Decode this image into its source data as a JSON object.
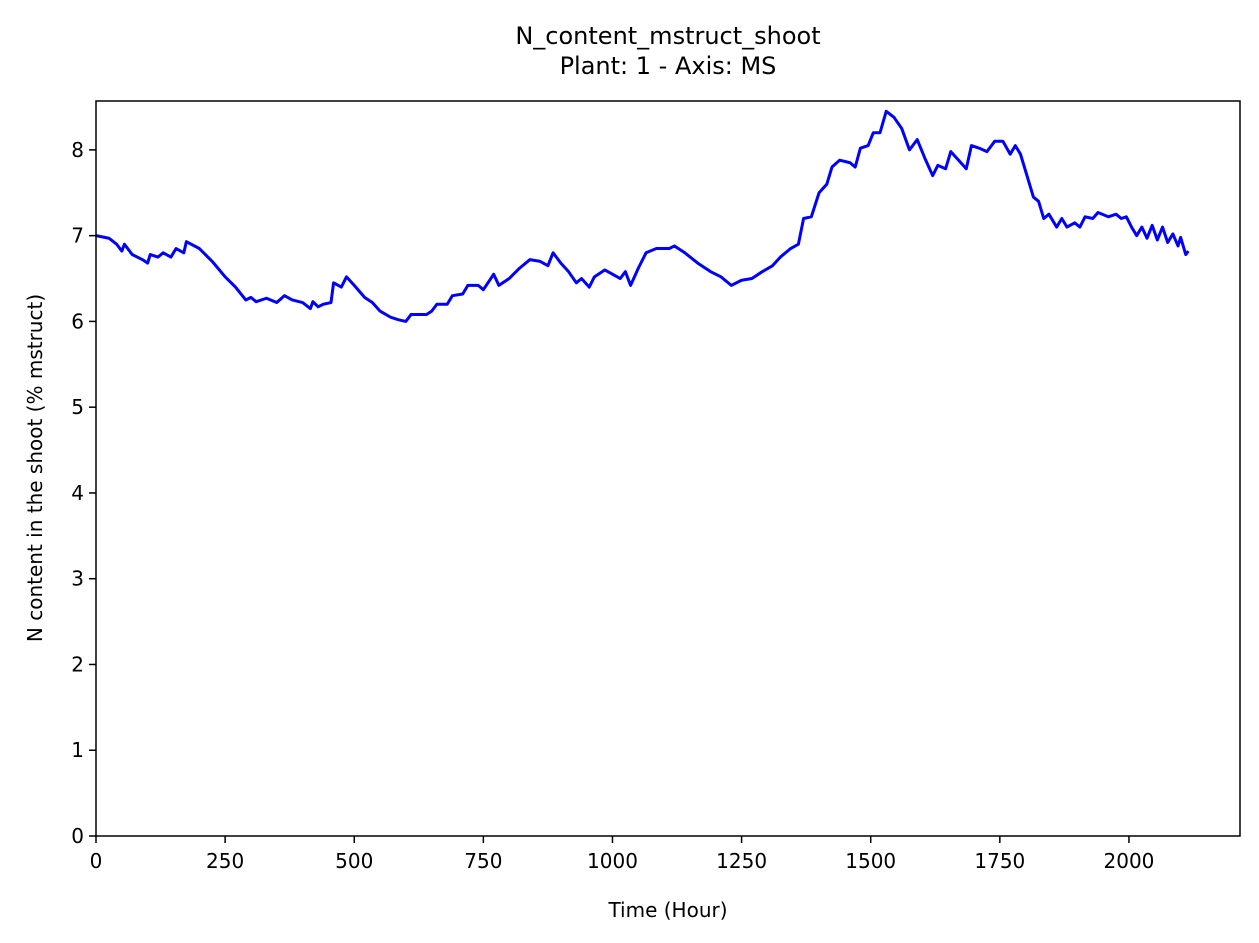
{
  "chart_data": {
    "type": "line",
    "title": "N_content_mstruct_shoot",
    "subtitle": "Plant: 1 - Axis: MS",
    "x_label": "Time (Hour)",
    "y_label": "N content in the shoot (% mstruct)",
    "xlim": [
      0,
      2215
    ],
    "ylim": [
      0,
      8.57
    ],
    "xticks": [
      0,
      250,
      500,
      750,
      1000,
      1250,
      1500,
      1750,
      2000
    ],
    "yticks": [
      0,
      1,
      2,
      3,
      4,
      5,
      6,
      7,
      8
    ],
    "series": [
      {
        "color": "#0000ff",
        "x": [
          0,
          25,
          40,
          50,
          55,
          70,
          90,
          100,
          105,
          120,
          130,
          145,
          155,
          170,
          175,
          200,
          225,
          250,
          270,
          290,
          300,
          310,
          330,
          350,
          365,
          380,
          400,
          415,
          420,
          430,
          440,
          455,
          460,
          475,
          485,
          500,
          520,
          535,
          550,
          570,
          585,
          600,
          610,
          640,
          650,
          660,
          680,
          690,
          710,
          720,
          740,
          750,
          770,
          780,
          800,
          820,
          840,
          860,
          875,
          885,
          900,
          915,
          930,
          940,
          955,
          965,
          985,
          1000,
          1015,
          1025,
          1035,
          1050,
          1065,
          1085,
          1110,
          1120,
          1140,
          1165,
          1190,
          1210,
          1230,
          1250,
          1270,
          1290,
          1310,
          1325,
          1345,
          1360,
          1370,
          1385,
          1400,
          1415,
          1425,
          1440,
          1460,
          1470,
          1480,
          1495,
          1505,
          1518,
          1530,
          1545,
          1560,
          1575,
          1590,
          1605,
          1620,
          1630,
          1645,
          1655,
          1670,
          1685,
          1695,
          1710,
          1725,
          1740,
          1756,
          1770,
          1780,
          1790,
          1800,
          1815,
          1825,
          1835,
          1845,
          1860,
          1870,
          1880,
          1895,
          1905,
          1915,
          1930,
          1940,
          1960,
          1975,
          1985,
          1995,
          2005,
          2015,
          2025,
          2035,
          2045,
          2055,
          2065,
          2075,
          2085,
          2095,
          2100,
          2110,
          2115
        ],
        "values": [
          7.0,
          6.97,
          6.9,
          6.82,
          6.9,
          6.78,
          6.72,
          6.68,
          6.78,
          6.75,
          6.8,
          6.75,
          6.85,
          6.8,
          6.93,
          6.85,
          6.7,
          6.52,
          6.4,
          6.25,
          6.28,
          6.23,
          6.27,
          6.22,
          6.3,
          6.25,
          6.22,
          6.15,
          6.23,
          6.17,
          6.2,
          6.22,
          6.45,
          6.4,
          6.52,
          6.42,
          6.28,
          6.22,
          6.12,
          6.05,
          6.02,
          6.0,
          6.08,
          6.08,
          6.12,
          6.2,
          6.2,
          6.3,
          6.32,
          6.42,
          6.42,
          6.37,
          6.55,
          6.42,
          6.5,
          6.62,
          6.72,
          6.7,
          6.65,
          6.8,
          6.68,
          6.58,
          6.45,
          6.5,
          6.4,
          6.52,
          6.6,
          6.55,
          6.5,
          6.58,
          6.42,
          6.62,
          6.8,
          6.85,
          6.85,
          6.88,
          6.8,
          6.68,
          6.58,
          6.52,
          6.42,
          6.48,
          6.5,
          6.58,
          6.65,
          6.75,
          6.85,
          6.9,
          7.2,
          7.22,
          7.5,
          7.6,
          7.8,
          7.88,
          7.85,
          7.8,
          8.02,
          8.05,
          8.2,
          8.2,
          8.45,
          8.38,
          8.25,
          8.0,
          8.12,
          7.9,
          7.7,
          7.82,
          7.78,
          7.98,
          7.88,
          7.78,
          8.05,
          8.02,
          7.98,
          8.1,
          8.1,
          7.95,
          8.05,
          7.95,
          7.75,
          7.45,
          7.4,
          7.2,
          7.25,
          7.1,
          7.2,
          7.1,
          7.15,
          7.1,
          7.22,
          7.2,
          7.27,
          7.22,
          7.25,
          7.2,
          7.22,
          7.1,
          7.0,
          7.1,
          6.97,
          7.12,
          6.95,
          7.1,
          6.92,
          7.02,
          6.88,
          6.98,
          6.78,
          6.82
        ]
      }
    ]
  }
}
